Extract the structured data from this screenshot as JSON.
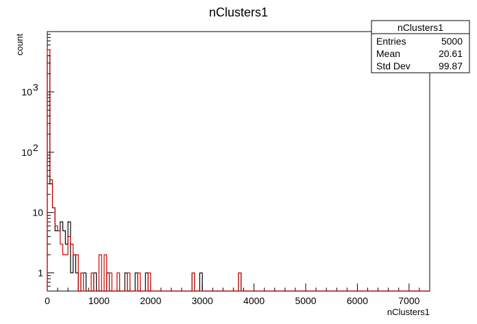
{
  "chart_data": {
    "type": "histogram",
    "title": "nClusters1",
    "xlabel": "nClusters1",
    "ylabel": "count",
    "xlim": [
      0,
      7400
    ],
    "ylim": [
      0.5,
      10000
    ],
    "y_scale": "log",
    "bin_width": 50,
    "x_ticks": [
      0,
      1000,
      2000,
      3000,
      4000,
      5000,
      6000,
      7000
    ],
    "y_ticks": [
      {
        "value": 1,
        "label": "1"
      },
      {
        "value": 10,
        "label": "10"
      },
      {
        "value": 100,
        "label": "10",
        "exp": "2"
      },
      {
        "value": 1000,
        "label": "10",
        "exp": "3"
      }
    ],
    "series": [
      {
        "color": "#000000",
        "bins": [
          [
            0,
            4000
          ],
          [
            50,
            30
          ],
          [
            100,
            12
          ],
          [
            150,
            5
          ],
          [
            200,
            5
          ],
          [
            250,
            7
          ],
          [
            300,
            5
          ],
          [
            350,
            3
          ],
          [
            400,
            7
          ],
          [
            450,
            1
          ],
          [
            500,
            2
          ],
          [
            550,
            1
          ],
          [
            650,
            1
          ],
          [
            700,
            1
          ],
          [
            900,
            1
          ],
          [
            1150,
            1
          ],
          [
            1500,
            1
          ],
          [
            1700,
            1
          ],
          [
            1900,
            1
          ],
          [
            2800,
            1
          ],
          [
            2950,
            1
          ],
          [
            3700,
            1
          ]
        ]
      },
      {
        "color": "#cc0000",
        "bins": [
          [
            0,
            5000
          ],
          [
            50,
            35
          ],
          [
            100,
            12
          ],
          [
            150,
            6
          ],
          [
            200,
            5
          ],
          [
            250,
            3
          ],
          [
            300,
            2
          ],
          [
            350,
            2
          ],
          [
            400,
            4
          ],
          [
            450,
            3
          ],
          [
            500,
            2
          ],
          [
            550,
            2
          ],
          [
            650,
            1
          ],
          [
            850,
            1
          ],
          [
            1000,
            2
          ],
          [
            1100,
            2
          ],
          [
            1200,
            1
          ],
          [
            1350,
            1
          ],
          [
            1550,
            1
          ],
          [
            1750,
            1
          ],
          [
            1950,
            1
          ],
          [
            2800,
            1
          ],
          [
            3700,
            1
          ]
        ]
      }
    ],
    "stats_box": {
      "title": "nClusters1",
      "rows": [
        {
          "label": "Entries",
          "value": "5000"
        },
        {
          "label": "Mean",
          "value": "20.61"
        },
        {
          "label": "Std Dev",
          "value": "99.87"
        }
      ]
    }
  }
}
